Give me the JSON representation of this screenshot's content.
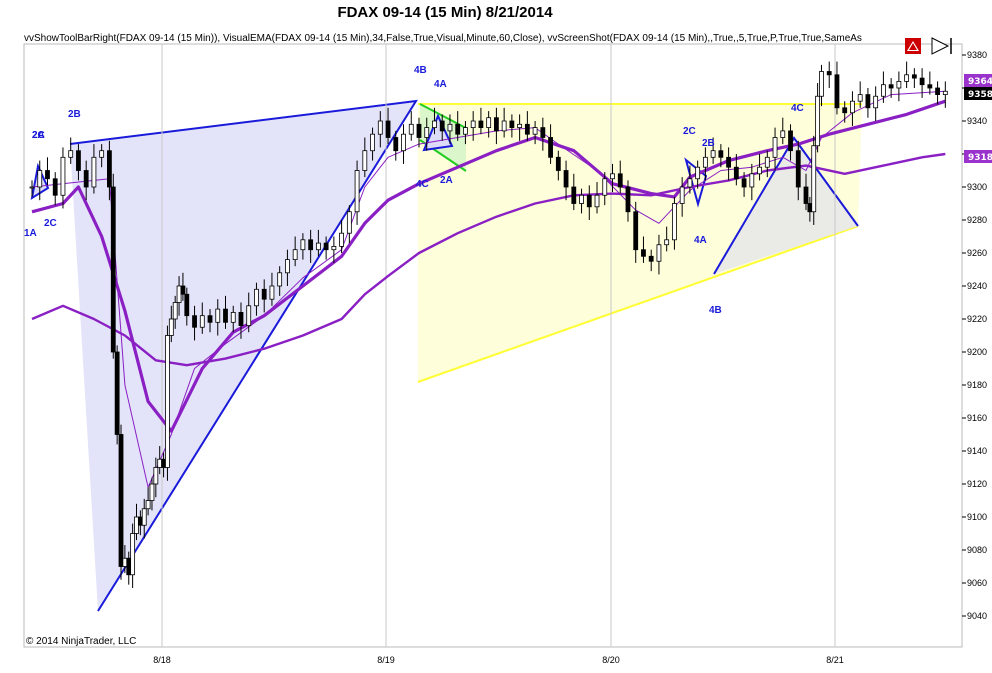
{
  "title": "FDAX 09-14 (15 Min)  8/21/2014",
  "indicator_line": "vvShowToolBarRight(FDAX 09-14 (15 Min)), VisualEMA(FDAX 09-14 (15 Min),34,False,True,Visual,Minute,60,Close), vvScreenShot(FDAX 09-14 (15 Min),,True,,5,True,P,True,True,SameAs",
  "copyright": "© 2014 NinjaTrader, LLC",
  "toolbar": {
    "alert_icon": "warning-triangle-icon",
    "nav_icon": "play-forward-icon"
  },
  "price_badges": [
    {
      "value": "9364",
      "color": "#9933cc"
    },
    {
      "value": "9358",
      "color": "#000000"
    },
    {
      "value": "9318",
      "color": "#9933cc"
    }
  ],
  "colors": {
    "pattern_blue": "#1a1adb",
    "ema_purple": "#8a1fc4",
    "wedge_yellow": "#ffff33",
    "wedge_fill": "#fefed6",
    "triangle_fill": "#dcdcf8",
    "green_band": "#22cc22"
  },
  "chart_data": {
    "type": "candlestick",
    "y_axis": {
      "ticks": [
        9040,
        9060,
        9080,
        9100,
        9120,
        9140,
        9160,
        9180,
        9200,
        9220,
        9240,
        9260,
        9280,
        9300,
        9320,
        9340,
        9360,
        9380
      ],
      "ylim": [
        9028,
        9394
      ]
    },
    "x_axis": {
      "ticks": [
        "8/18",
        "8/19",
        "8/20",
        "8/21"
      ]
    },
    "series": [
      {
        "kind": "candles",
        "points": [
          [
            0,
            9300
          ],
          [
            2,
            9310
          ],
          [
            4,
            9305
          ],
          [
            6,
            9295
          ],
          [
            8,
            9318
          ],
          [
            10,
            9322
          ],
          [
            12,
            9310
          ],
          [
            14,
            9300
          ],
          [
            16,
            9318
          ],
          [
            18,
            9322
          ],
          [
            20,
            9300
          ],
          [
            21,
            9200
          ],
          [
            22,
            9150
          ],
          [
            23,
            9070
          ],
          [
            24,
            9075
          ],
          [
            25,
            9065
          ],
          [
            26,
            9090
          ],
          [
            27,
            9100
          ],
          [
            28,
            9095
          ],
          [
            29,
            9105
          ],
          [
            30,
            9110
          ],
          [
            31,
            9120
          ],
          [
            32,
            9130
          ],
          [
            33,
            9135
          ],
          [
            34,
            9130
          ],
          [
            35,
            9210
          ],
          [
            36,
            9220
          ],
          [
            37,
            9230
          ],
          [
            38,
            9240
          ],
          [
            39,
            9235
          ],
          [
            40,
            9222
          ],
          [
            42,
            9215
          ],
          [
            44,
            9222
          ],
          [
            46,
            9218
          ],
          [
            48,
            9226
          ],
          [
            50,
            9218
          ],
          [
            52,
            9224
          ],
          [
            54,
            9216
          ],
          [
            56,
            9228
          ],
          [
            58,
            9238
          ],
          [
            60,
            9232
          ],
          [
            62,
            9240
          ],
          [
            64,
            9248
          ],
          [
            66,
            9256
          ],
          [
            68,
            9262
          ],
          [
            70,
            9268
          ],
          [
            72,
            9262
          ],
          [
            74,
            9266
          ],
          [
            76,
            9262
          ],
          [
            78,
            9264
          ],
          [
            80,
            9272
          ],
          [
            82,
            9285
          ],
          [
            84,
            9310
          ],
          [
            86,
            9322
          ],
          [
            88,
            9332
          ],
          [
            90,
            9340
          ],
          [
            92,
            9330
          ],
          [
            94,
            9322
          ],
          [
            96,
            9332
          ],
          [
            98,
            9338
          ],
          [
            100,
            9330
          ],
          [
            102,
            9336
          ],
          [
            104,
            9340
          ],
          [
            106,
            9334
          ],
          [
            108,
            9338
          ],
          [
            110,
            9332
          ],
          [
            112,
            9336
          ],
          [
            114,
            9340
          ],
          [
            116,
            9336
          ],
          [
            118,
            9342
          ],
          [
            120,
            9334
          ],
          [
            122,
            9340
          ],
          [
            124,
            9336
          ],
          [
            126,
            9338
          ],
          [
            128,
            9332
          ],
          [
            130,
            9336
          ],
          [
            132,
            9330
          ],
          [
            134,
            9318
          ],
          [
            136,
            9310
          ],
          [
            138,
            9300
          ],
          [
            140,
            9290
          ],
          [
            142,
            9295
          ],
          [
            144,
            9288
          ],
          [
            146,
            9295
          ],
          [
            148,
            9305
          ],
          [
            150,
            9308
          ],
          [
            152,
            9300
          ],
          [
            154,
            9285
          ],
          [
            156,
            9262
          ],
          [
            158,
            9258
          ],
          [
            160,
            9255
          ],
          [
            162,
            9265
          ],
          [
            164,
            9268
          ],
          [
            166,
            9290
          ],
          [
            168,
            9300
          ],
          [
            170,
            9305
          ],
          [
            172,
            9312
          ],
          [
            174,
            9318
          ],
          [
            176,
            9322
          ],
          [
            178,
            9318
          ],
          [
            180,
            9312
          ],
          [
            182,
            9305
          ],
          [
            184,
            9300
          ],
          [
            186,
            9308
          ],
          [
            188,
            9312
          ],
          [
            190,
            9318
          ],
          [
            192,
            9330
          ],
          [
            194,
            9334
          ],
          [
            196,
            9322
          ],
          [
            198,
            9300
          ],
          [
            200,
            9290
          ],
          [
            201,
            9285
          ],
          [
            202,
            9325
          ],
          [
            203,
            9355
          ],
          [
            204,
            9370
          ],
          [
            206,
            9368
          ],
          [
            208,
            9348
          ],
          [
            210,
            9345
          ],
          [
            212,
            9352
          ],
          [
            214,
            9356
          ],
          [
            216,
            9348
          ],
          [
            218,
            9355
          ],
          [
            220,
            9362
          ],
          [
            222,
            9360
          ],
          [
            224,
            9364
          ],
          [
            226,
            9368
          ],
          [
            228,
            9366
          ],
          [
            230,
            9362
          ],
          [
            232,
            9360
          ],
          [
            234,
            9356
          ],
          [
            236,
            9358
          ]
        ]
      },
      {
        "kind": "ema",
        "name": "fast",
        "points": [
          [
            0,
            9300
          ],
          [
            20,
            9305
          ],
          [
            24,
            9180
          ],
          [
            30,
            9118
          ],
          [
            36,
            9150
          ],
          [
            42,
            9190
          ],
          [
            50,
            9205
          ],
          [
            60,
            9222
          ],
          [
            70,
            9245
          ],
          [
            80,
            9262
          ],
          [
            86,
            9300
          ],
          [
            92,
            9318
          ],
          [
            100,
            9326
          ],
          [
            110,
            9330
          ],
          [
            120,
            9334
          ],
          [
            130,
            9336
          ],
          [
            136,
            9326
          ],
          [
            146,
            9310
          ],
          [
            156,
            9286
          ],
          [
            162,
            9278
          ],
          [
            170,
            9298
          ],
          [
            178,
            9310
          ],
          [
            186,
            9312
          ],
          [
            194,
            9318
          ],
          [
            200,
            9310
          ],
          [
            204,
            9330
          ],
          [
            212,
            9345
          ],
          [
            222,
            9356
          ],
          [
            236,
            9358
          ]
        ]
      },
      {
        "kind": "ema",
        "name": "slow",
        "points": [
          [
            0,
            9285
          ],
          [
            8,
            9290
          ],
          [
            12,
            9300
          ],
          [
            18,
            9270
          ],
          [
            24,
            9225
          ],
          [
            30,
            9170
          ],
          [
            36,
            9152
          ],
          [
            44,
            9190
          ],
          [
            52,
            9212
          ],
          [
            60,
            9222
          ],
          [
            70,
            9240
          ],
          [
            80,
            9258
          ],
          [
            86,
            9278
          ],
          [
            92,
            9292
          ],
          [
            100,
            9302
          ],
          [
            110,
            9312
          ],
          [
            120,
            9322
          ],
          [
            130,
            9330
          ],
          [
            140,
            9322
          ],
          [
            150,
            9302
          ],
          [
            160,
            9296
          ],
          [
            166,
            9294
          ],
          [
            170,
            9306
          ],
          [
            180,
            9316
          ],
          [
            190,
            9322
          ],
          [
            198,
            9326
          ],
          [
            206,
            9332
          ],
          [
            216,
            9338
          ],
          [
            226,
            9344
          ],
          [
            236,
            9352
          ]
        ]
      },
      {
        "kind": "ema",
        "name": "long",
        "points": [
          [
            0,
            9220
          ],
          [
            8,
            9228
          ],
          [
            16,
            9220
          ],
          [
            24,
            9210
          ],
          [
            32,
            9195
          ],
          [
            40,
            9192
          ],
          [
            50,
            9196
          ],
          [
            60,
            9202
          ],
          [
            70,
            9210
          ],
          [
            80,
            9220
          ],
          [
            86,
            9235
          ],
          [
            92,
            9246
          ],
          [
            100,
            9260
          ],
          [
            110,
            9272
          ],
          [
            120,
            9282
          ],
          [
            130,
            9290
          ],
          [
            140,
            9295
          ],
          [
            150,
            9296
          ],
          [
            160,
            9295
          ],
          [
            170,
            9300
          ],
          [
            180,
            9304
          ],
          [
            190,
            9310
          ],
          [
            200,
            9313
          ],
          [
            210,
            9308
          ],
          [
            220,
            9313
          ],
          [
            230,
            9318
          ],
          [
            236,
            9320
          ]
        ]
      }
    ],
    "pattern_labels": [
      "2A",
      "2B",
      "2C",
      "1A",
      "2C",
      "4B",
      "4A",
      "4C",
      "2A",
      "2C",
      "2B",
      "4A",
      "4B",
      "4C"
    ]
  }
}
